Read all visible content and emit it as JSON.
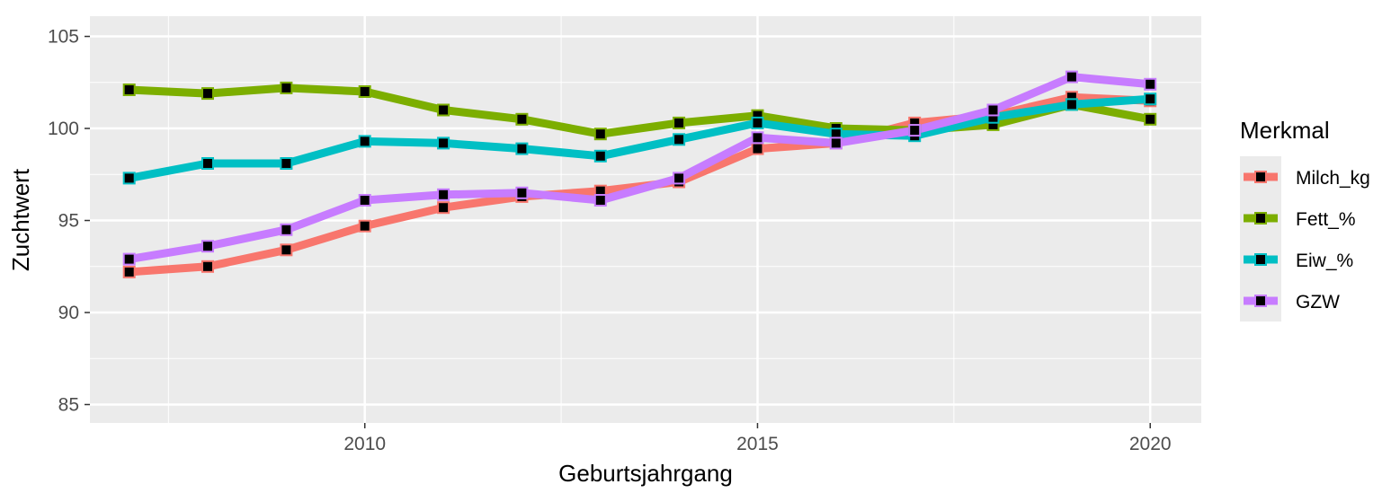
{
  "chart_data": {
    "type": "line",
    "xlabel": "Geburtsjahrgang",
    "ylabel": "Zuchtwert",
    "x": [
      2007,
      2008,
      2009,
      2010,
      2011,
      2012,
      2013,
      2014,
      2015,
      2016,
      2017,
      2018,
      2019,
      2020
    ],
    "xlim": [
      2006.5,
      2020.65
    ],
    "ylim": [
      84,
      106.1
    ],
    "x_ticks": [
      2010,
      2015,
      2020
    ],
    "x_tick_labels": [
      "2010",
      "2015",
      "2020"
    ],
    "y_ticks": [
      85,
      90,
      95,
      100,
      105
    ],
    "y_tick_labels": [
      "85",
      "90",
      "95",
      "100",
      "105"
    ],
    "grid": true,
    "legend": {
      "title": "Merkmal",
      "position": "right"
    },
    "series": [
      {
        "name": "Milch_kg",
        "color": "#f8766d",
        "values": [
          92.2,
          92.5,
          93.4,
          94.7,
          95.7,
          96.3,
          96.6,
          97.1,
          98.9,
          99.2,
          100.3,
          100.7,
          101.7,
          101.5
        ]
      },
      {
        "name": "Fett_%",
        "color": "#7cae00",
        "values": [
          102.1,
          101.9,
          102.2,
          102.0,
          101.0,
          100.5,
          99.7,
          100.3,
          100.7,
          100.0,
          99.9,
          100.2,
          101.3,
          100.5
        ]
      },
      {
        "name": "Eiw_%",
        "color": "#00bfc4",
        "values": [
          97.3,
          98.1,
          98.1,
          99.3,
          99.2,
          98.9,
          98.5,
          99.4,
          100.3,
          99.7,
          99.6,
          100.6,
          101.3,
          101.6
        ]
      },
      {
        "name": "GZW",
        "color": "#c77cff",
        "values": [
          92.9,
          93.6,
          94.5,
          96.1,
          96.4,
          96.5,
          96.1,
          97.3,
          99.5,
          99.2,
          99.9,
          101.0,
          102.8,
          102.4
        ]
      }
    ]
  }
}
